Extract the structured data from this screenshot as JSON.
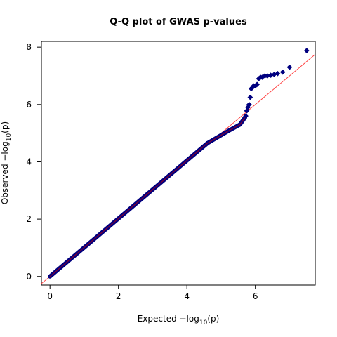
{
  "chart_data": {
    "type": "scatter",
    "title": "Q-Q plot of GWAS p-values",
    "xlabel": {
      "prefix": "Expected  −log",
      "subscript": "10",
      "suffix": "(p)"
    },
    "ylabel": {
      "prefix": "Observed  −log",
      "subscript": "10",
      "suffix": "(p)"
    },
    "xlim": [
      -0.25,
      7.75
    ],
    "ylim": [
      -0.3,
      8.2
    ],
    "x_ticks": [
      0,
      2,
      4,
      6
    ],
    "x_tick_labels": [
      "0",
      "2",
      "4",
      "6"
    ],
    "y_ticks": [
      0,
      2,
      4,
      6,
      8
    ],
    "y_tick_labels": [
      "0",
      "2",
      "4",
      "6",
      "8"
    ],
    "grid": false,
    "legend": "none",
    "point_color": "#00007f",
    "point_marker": "diamond",
    "reference_line": {
      "color": "#ff3a3a",
      "points": [
        [
          -0.25,
          -0.25
        ],
        [
          7.75,
          7.75
        ]
      ]
    },
    "curve_color": "#7f0033",
    "curve_segments": [
      {
        "from": [
          0,
          0.0
        ],
        "to": [
          4.6,
          4.65
        ]
      },
      {
        "from": [
          4.6,
          4.65
        ],
        "to": [
          5.2,
          5.07
        ]
      },
      {
        "from": [
          5.2,
          5.07
        ],
        "to": [
          5.55,
          5.3
        ]
      },
      {
        "from": [
          5.55,
          5.3
        ],
        "to": [
          5.7,
          5.55
        ]
      }
    ],
    "points": [
      [
        5.72,
        5.6
      ],
      [
        5.75,
        5.78
      ],
      [
        5.78,
        5.9
      ],
      [
        5.82,
        6.0
      ],
      [
        5.85,
        6.25
      ],
      [
        5.88,
        6.55
      ],
      [
        5.92,
        6.6
      ],
      [
        5.95,
        6.65
      ],
      [
        6.0,
        6.65
      ],
      [
        6.05,
        6.7
      ],
      [
        6.1,
        6.9
      ],
      [
        6.15,
        6.95
      ],
      [
        6.2,
        6.95
      ],
      [
        6.28,
        7.0
      ],
      [
        6.35,
        7.0
      ],
      [
        6.45,
        7.02
      ],
      [
        6.55,
        7.05
      ],
      [
        6.65,
        7.08
      ],
      [
        6.8,
        7.13
      ],
      [
        7.0,
        7.3
      ],
      [
        7.5,
        7.88
      ]
    ]
  }
}
